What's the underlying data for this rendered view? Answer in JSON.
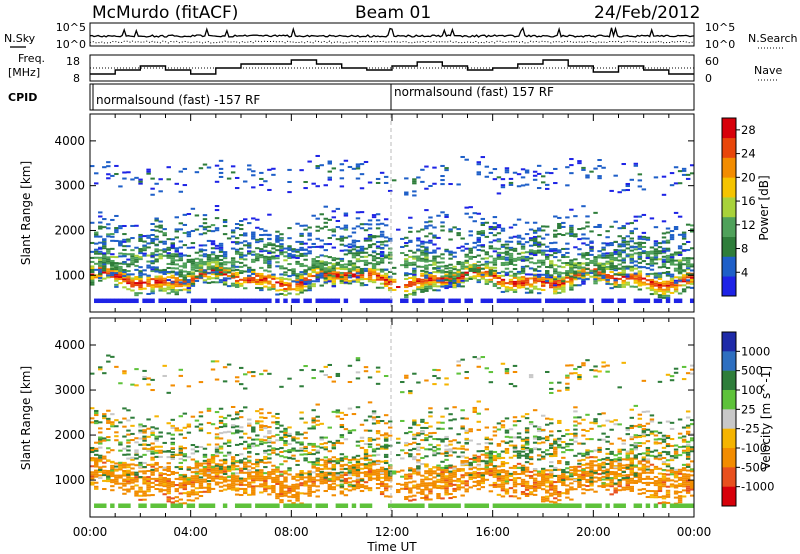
{
  "header": {
    "station": "McMurdo (fitACF)",
    "beam": "Beam 01",
    "date": "24/Feb/2012"
  },
  "left_labels": {
    "nsky": "N.Sky",
    "freq_line1": "Freq.",
    "freq_line2": "[MHz]",
    "cpid": "CPID"
  },
  "right_labels": {
    "nsearch": "N.Search",
    "nave": "Nave"
  },
  "noise_panel": {
    "left_ticks": [
      "10^5",
      "10^0"
    ],
    "right_ticks": [
      "10^5",
      "10^0"
    ]
  },
  "freq_panel": {
    "left_ticks": [
      "18",
      "8"
    ],
    "right_ticks": [
      "60",
      "0"
    ]
  },
  "cpid_panel": {
    "mode_1": "normalsound (fast) -157 RF",
    "mode_2": "normalsound (fast) 157 RF"
  },
  "colors": {
    "power": [
      "#1e23e6",
      "#1e5fc8",
      "#2e7d3a",
      "#4fa15a",
      "#a8d23a",
      "#f5c400",
      "#f28c00",
      "#e8460a",
      "#d7000a"
    ],
    "velocity": [
      "#1e2aa8",
      "#2e6fc0",
      "#2e7d3a",
      "#5ec23a",
      "#c8c8c8",
      "#f5b400",
      "#f28c00",
      "#e8501e",
      "#d7000a"
    ]
  },
  "chart_data": [
    {
      "type": "heatmap",
      "title": "",
      "xlabel": "Time UT",
      "ylabel": "Slant Range [km]",
      "x_ticks": [
        "00:00",
        "04:00",
        "08:00",
        "12:00",
        "16:00",
        "20:00",
        "00:00"
      ],
      "y_ticks": [
        "1000",
        "2000",
        "3000",
        "4000"
      ],
      "ylim": [
        180,
        4600
      ],
      "colorbar_label": "Power [dB]",
      "colorbar_ticks": [
        "4",
        "8",
        "12",
        "16",
        "20",
        "24",
        "28"
      ],
      "colorbar_range": [
        0,
        30
      ],
      "bands": [
        {
          "name": "main",
          "y_center": 900,
          "width": 250,
          "value": 27,
          "cover": 0.85
        },
        {
          "name": "mid",
          "y_center": 1300,
          "width": 450,
          "value": 12,
          "cover": 0.55
        },
        {
          "name": "high",
          "y_center": 1900,
          "width": 500,
          "value": 8,
          "cover": 0.22
        },
        {
          "name": "far",
          "y_center": 3200,
          "width": 350,
          "value": 6,
          "cover": 0.12
        }
      ]
    },
    {
      "type": "heatmap",
      "title": "",
      "xlabel": "Time UT",
      "ylabel": "Slant Range [km]",
      "x_ticks": [
        "00:00",
        "04:00",
        "08:00",
        "12:00",
        "16:00",
        "20:00",
        "00:00"
      ],
      "y_ticks": [
        "1000",
        "2000",
        "3000",
        "4000"
      ],
      "ylim": [
        180,
        4600
      ],
      "colorbar_label": "Velocity [m s^-1]",
      "colorbar_ticks": [
        "1000",
        "500",
        "100",
        "25",
        "-25",
        "-100",
        "-500",
        "-1000"
      ],
      "colorbar_range": [
        -1000,
        1000
      ],
      "bands": [
        {
          "name": "main",
          "y_center": 1000,
          "width": 400,
          "value": -300,
          "cover": 0.75
        },
        {
          "name": "mid",
          "y_center": 1500,
          "width": 500,
          "value": 60,
          "cover": 0.35
        },
        {
          "name": "high",
          "y_center": 2100,
          "width": 500,
          "value": 0,
          "cover": 0.22
        },
        {
          "name": "far",
          "y_center": 3300,
          "width": 300,
          "value": 0,
          "cover": 0.12
        }
      ]
    }
  ]
}
